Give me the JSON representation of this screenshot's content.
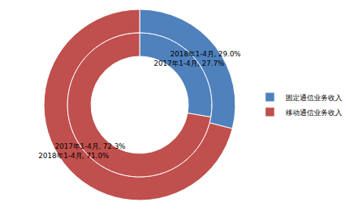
{
  "chart_data": {
    "type": "pie",
    "categories": [
      "固定通信业务收入",
      "移动通信业务收入"
    ],
    "colors": [
      "#4f81bd",
      "#c0504d"
    ],
    "series": [
      {
        "name": "2018年1-4月",
        "values": [
          29.0,
          71.0
        ],
        "value_labels": [
          "2018年1-4月, 29.0%",
          "2018年1-4月, 71.0%"
        ]
      },
      {
        "name": "2017年1-4月",
        "values": [
          27.7,
          72.3
        ],
        "value_labels": [
          "2017年1-4月, 27.7%",
          "2017年1-4月, 72.3%"
        ]
      }
    ],
    "data_labels": true,
    "legend": "right"
  }
}
